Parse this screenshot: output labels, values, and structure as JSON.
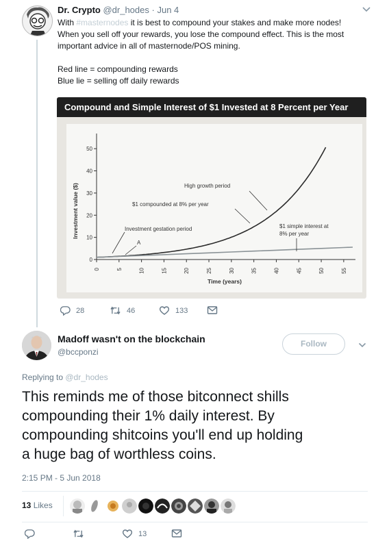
{
  "tweet": {
    "author_name": "Dr. Crypto",
    "author_handle": "@dr_hodes",
    "separator": "·",
    "date": "Jun 4",
    "text_with": "With ",
    "hashtag": "#masternodes",
    "text_line1_rest": " it is best to compound your stakes and make more nodes!",
    "text_line2": "When you sell off your rewards, you lose the compound effect. This is the most",
    "text_line3": "important advice in all of masternode/POS mining.",
    "text_line4": "Red line = compounding rewards",
    "text_line5": "Blue lie = selling off daily rewards",
    "reply_count": "28",
    "retweet_count": "46",
    "like_count": "133"
  },
  "chart_data": {
    "type": "line",
    "title": "Compound and Simple Interest of $1 Invested at 8 Percent per Year",
    "xlabel": "Time (years)",
    "ylabel": "Investment value ($)",
    "xlim": [
      0,
      57
    ],
    "ylim": [
      0,
      55
    ],
    "x_ticks": [
      "0",
      "5",
      "10",
      "15",
      "20",
      "25",
      "30",
      "35",
      "40",
      "45",
      "50",
      "55"
    ],
    "y_ticks": [
      "0",
      "10",
      "20",
      "30",
      "40",
      "50"
    ],
    "series": [
      {
        "name": "$1 compounded at 8% per year",
        "color": "#2b2b2b",
        "x": [
          0,
          5,
          10,
          15,
          20,
          25,
          30,
          35,
          40,
          45,
          50,
          51
        ],
        "y": [
          1,
          1.47,
          2.16,
          3.17,
          4.66,
          6.85,
          10.06,
          14.79,
          21.72,
          31.92,
          46.9,
          50.6
        ]
      },
      {
        "name": "$1 simple interest at 8% per year",
        "color": "#8a9296",
        "x": [
          0,
          5,
          10,
          15,
          20,
          25,
          30,
          35,
          40,
          45,
          50,
          55,
          57
        ],
        "y": [
          1,
          1.4,
          1.8,
          2.2,
          2.6,
          3.0,
          3.4,
          3.8,
          4.2,
          4.6,
          5.0,
          5.4,
          5.56
        ]
      }
    ],
    "annotations": [
      {
        "text": "High growth period"
      },
      {
        "text": "$1 compounded at 8% per year"
      },
      {
        "text": "Investment gestation period"
      },
      {
        "text": "A"
      },
      {
        "text": "$1 simple interest at"
      },
      {
        "text": "8% per year"
      }
    ],
    "grid": false,
    "legend": "none"
  },
  "reply": {
    "author_name": "Madoff wasn't on the blockchain",
    "author_handle": "@bccponzi",
    "follow_label": "Follow",
    "replying_prefix": "Replying to ",
    "replying_to": "@dr_hodes",
    "text_lines": [
      "This reminds me of those bitconnect shills",
      "compounding their 1% daily interest. By",
      "compounding shitcoins you'll end up holding",
      "a huge bag of worthless coins."
    ],
    "timestamp": "2:15 PM - 5 Jun 2018",
    "likes_count": "13",
    "likes_label": " Likes",
    "like_count": "13"
  },
  "colors": {
    "text": "#14171a",
    "muted": "#657786",
    "hashtag": "#c4cfd6",
    "divider": "#e6ecf0",
    "chart_bg": "#e8e6e1",
    "chart_title_bg": "#1f1f1f"
  },
  "icons": [
    "reply-icon",
    "retweet-icon",
    "like-icon",
    "message-icon",
    "chevron-down-icon"
  ]
}
